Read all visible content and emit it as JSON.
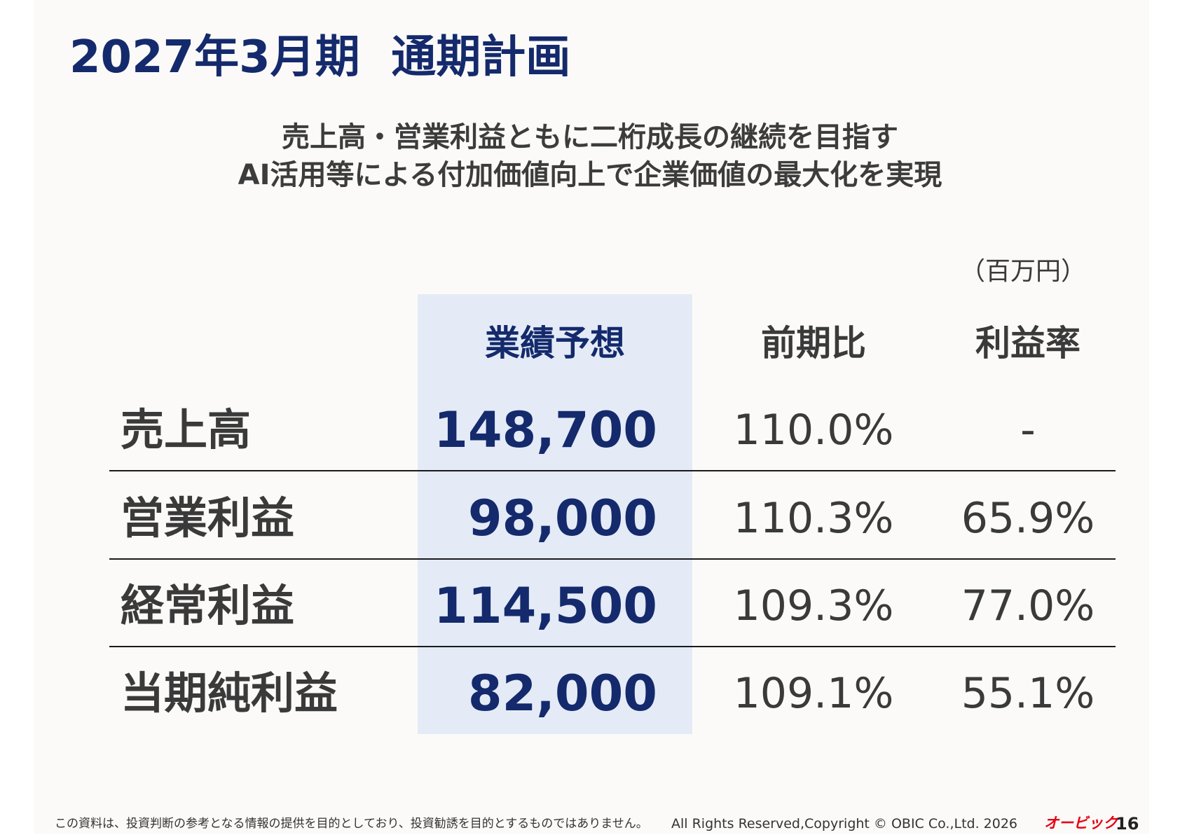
{
  "title": "2027年3月期  通期計画",
  "subtitle": {
    "line1": "売上高・営業利益ともに二桁成長の継続を目指す",
    "line2": "AI活用等による付加価値向上で企業価値の最大化を実現"
  },
  "unit": "（百万円）",
  "table": {
    "headers": {
      "forecast": "業績予想",
      "yoy": "前期比",
      "margin": "利益率"
    },
    "rows": [
      {
        "label": "売上高",
        "forecast": "148,700",
        "yoy": "110.0%",
        "margin": "-"
      },
      {
        "label": "営業利益",
        "forecast": "98,000",
        "yoy": "110.3%",
        "margin": "65.9%"
      },
      {
        "label": "経常利益",
        "forecast": "114,500",
        "yoy": "109.3%",
        "margin": "77.0%"
      },
      {
        "label": "当期純利益",
        "forecast": "82,000",
        "yoy": "109.1%",
        "margin": "55.1%"
      }
    ]
  },
  "footer": {
    "disclaimer": "この資料は、投資判断の参考となる情報の提供を目的としており、投資勧誘を目的とするものではありません。",
    "copyright": "All Rights Reserved,Copyright © OBIC Co.,Ltd. 2026",
    "logo": "オービック",
    "page": "16"
  },
  "colors": {
    "title": "#142a6c",
    "forecast_highlight": "#e4ebf6",
    "logo": "#e60012"
  }
}
